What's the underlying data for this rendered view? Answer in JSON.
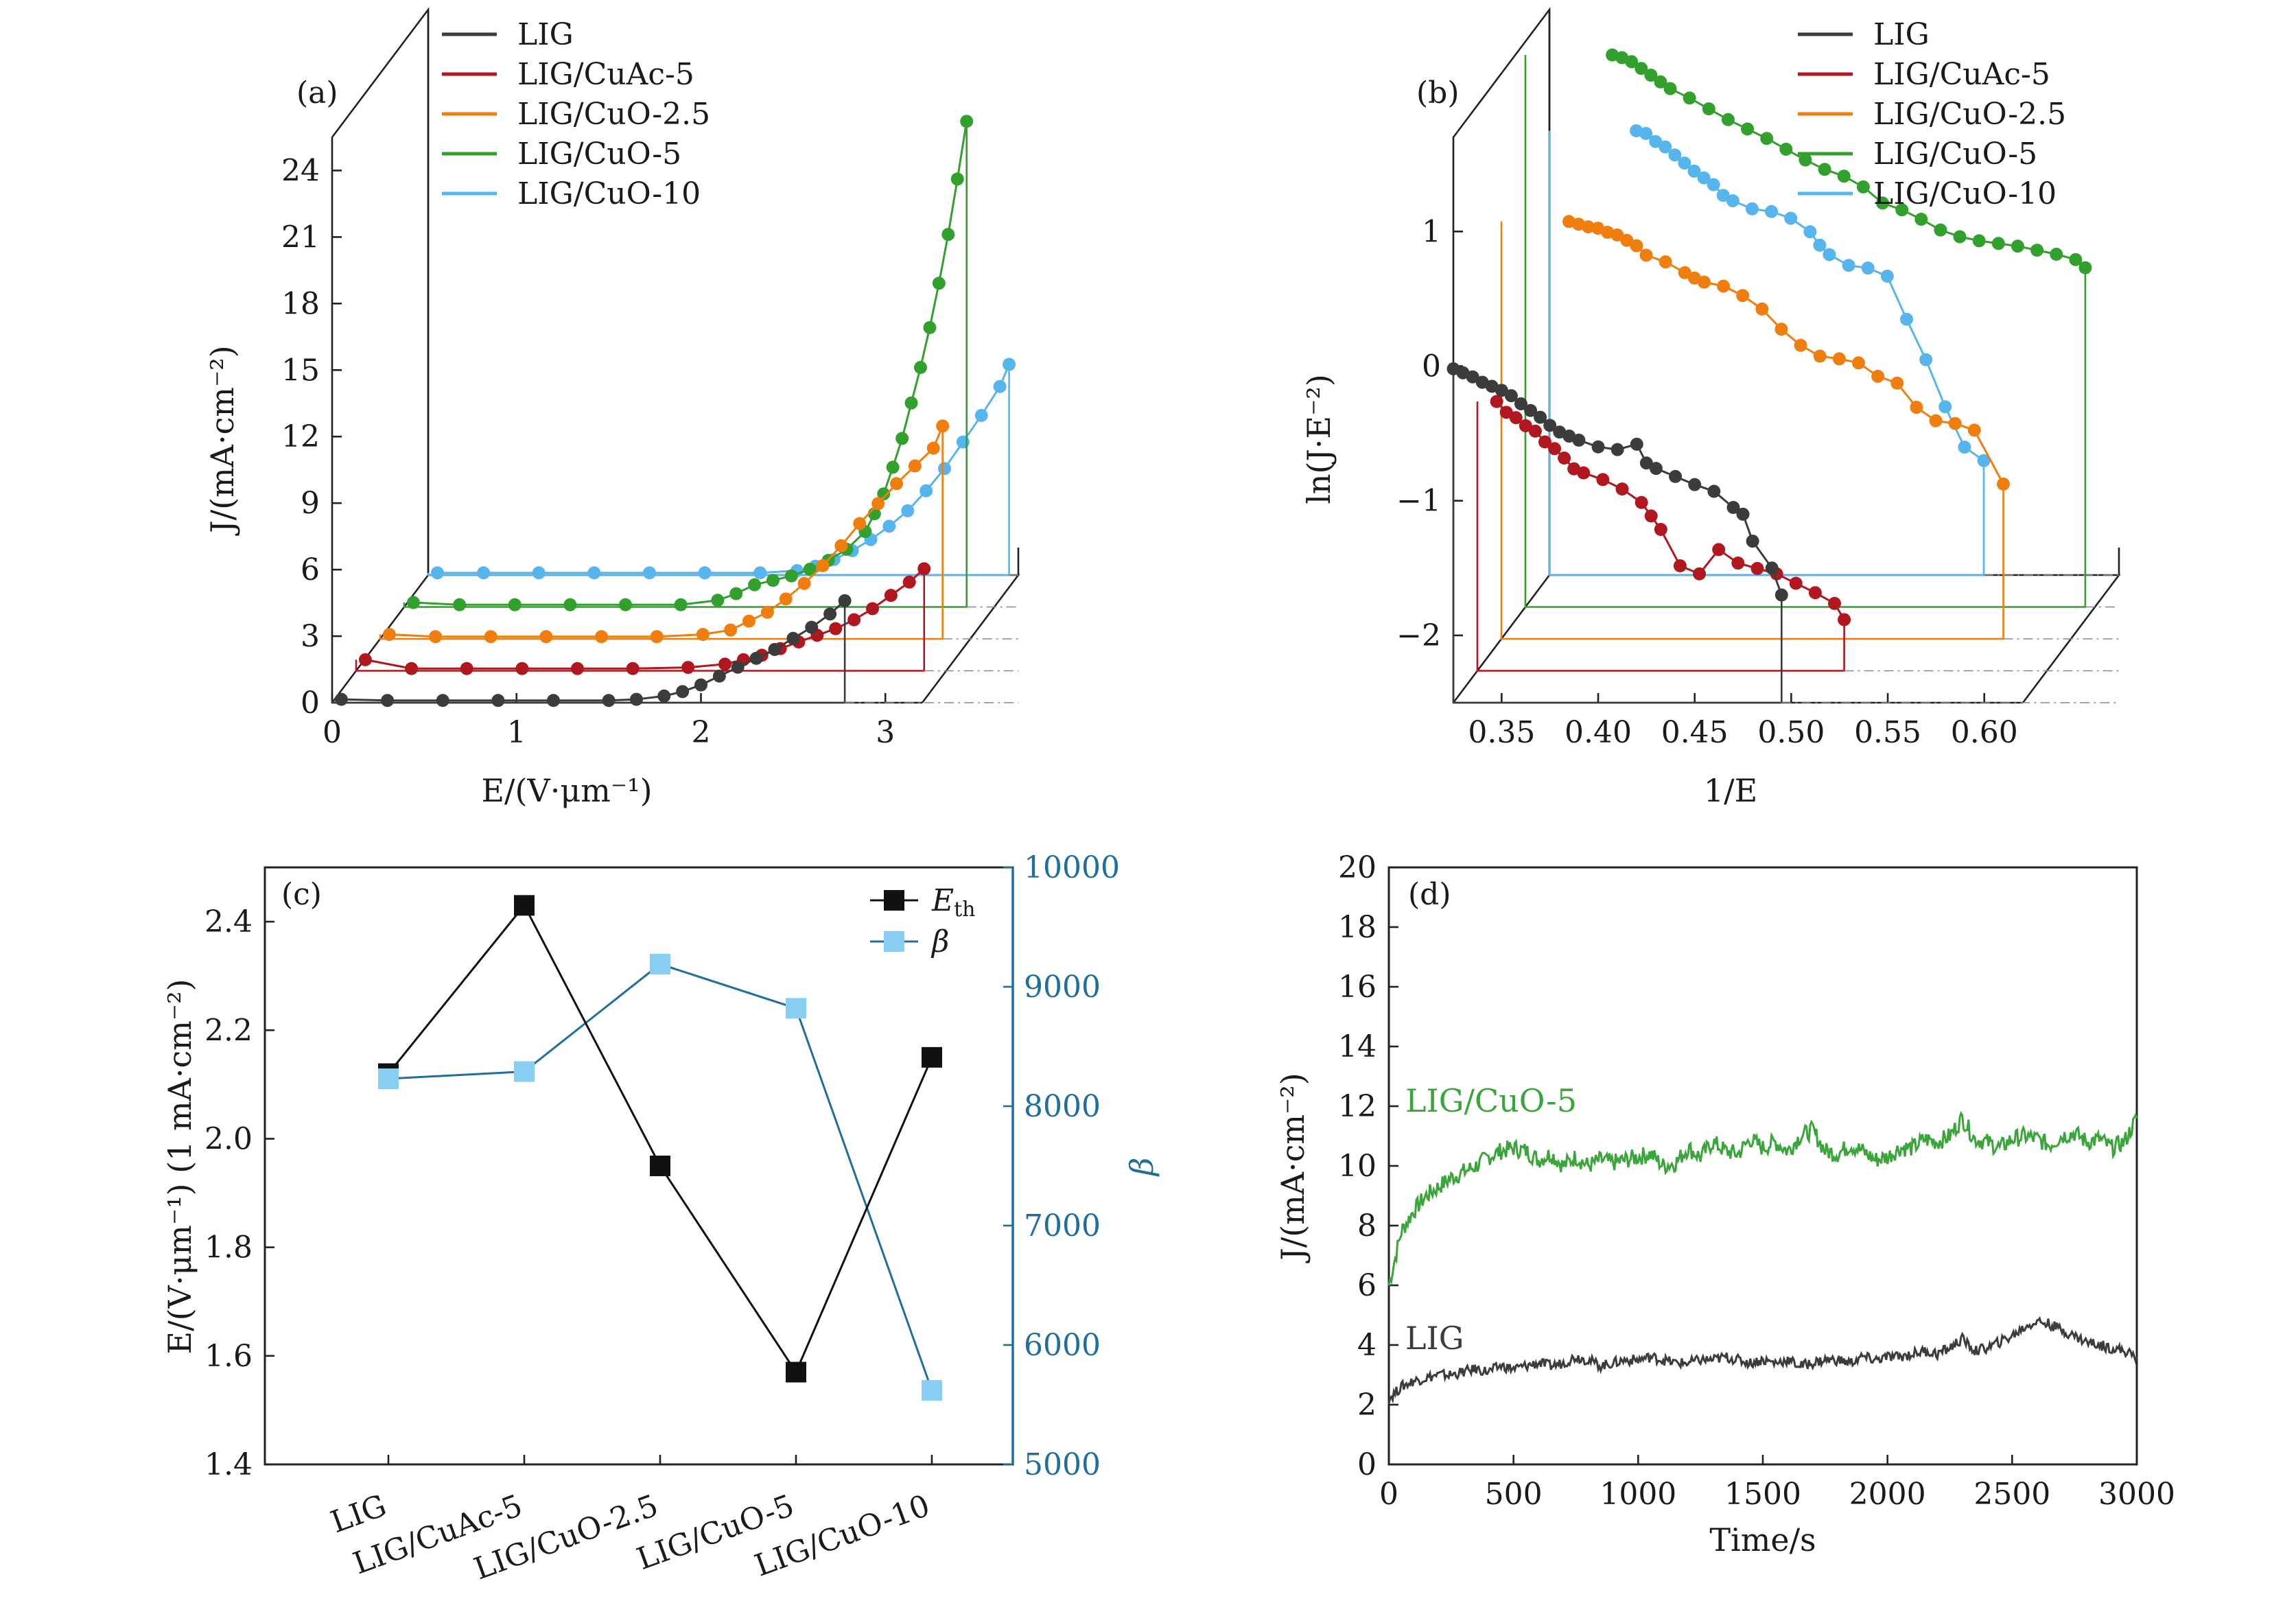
{
  "colors": {
    "LIG": "#3c3c3c",
    "LIG/CuAc-5": "#b0171f",
    "LIG/CuO-2.5": "#f07e0e",
    "LIG/CuO-5": "#32a02c",
    "LIG/CuO-10": "#56b5ec",
    "beta_line": "#1f6e9b",
    "beta_marker": "#87cdf4",
    "Eth": "#111111"
  },
  "chart_data": [
    {
      "panel": "(a)",
      "type": "line",
      "style": "3d-waterfall",
      "xlabel": "E/(V·μm⁻¹)",
      "ylabel": "J/(mA·cm⁻²)",
      "xticks": [
        "0",
        "1",
        "2",
        "3"
      ],
      "yticks": [
        "0",
        "3",
        "6",
        "9",
        "12",
        "15",
        "18",
        "21",
        "24"
      ],
      "xlim": [
        0,
        3.2
      ],
      "ylim": [
        0,
        25.5
      ],
      "legend": "top-left",
      "series": [
        {
          "name": "LIG",
          "x": [
            0.05,
            0.3,
            0.6,
            0.9,
            1.2,
            1.5,
            1.65,
            1.8,
            1.9,
            2.0,
            2.1,
            2.2,
            2.3,
            2.4,
            2.5,
            2.6,
            2.7,
            2.78
          ],
          "y": [
            0.15,
            0.1,
            0.1,
            0.1,
            0.1,
            0.1,
            0.15,
            0.3,
            0.5,
            0.8,
            1.2,
            1.6,
            2.0,
            2.4,
            2.9,
            3.4,
            4.0,
            4.6
          ]
        },
        {
          "name": "LIG/CuAc-5",
          "x": [
            0.05,
            0.3,
            0.6,
            0.9,
            1.2,
            1.5,
            1.8,
            2.0,
            2.1,
            2.2,
            2.3,
            2.4,
            2.5,
            2.6,
            2.7,
            2.8,
            2.9,
            3.0,
            3.08
          ],
          "y": [
            0.5,
            0.1,
            0.1,
            0.1,
            0.1,
            0.1,
            0.15,
            0.3,
            0.5,
            0.7,
            1.0,
            1.3,
            1.6,
            1.9,
            2.3,
            2.8,
            3.4,
            4.0,
            4.6
          ]
        },
        {
          "name": "LIG/CuO-2.5",
          "x": [
            0.05,
            0.3,
            0.6,
            0.9,
            1.2,
            1.5,
            1.75,
            1.9,
            2.0,
            2.1,
            2.2,
            2.3,
            2.4,
            2.5,
            2.6,
            2.7,
            2.8,
            2.9,
            3.0,
            3.05
          ],
          "y": [
            0.2,
            0.1,
            0.1,
            0.1,
            0.1,
            0.1,
            0.2,
            0.4,
            0.8,
            1.2,
            1.8,
            2.5,
            3.3,
            4.2,
            5.2,
            6.1,
            7.0,
            7.8,
            8.6,
            9.6
          ]
        },
        {
          "name": "LIG/CuO-5",
          "x": [
            0.05,
            0.3,
            0.6,
            0.9,
            1.2,
            1.5,
            1.7,
            1.8,
            1.9,
            2.0,
            2.1,
            2.2,
            2.3,
            2.4,
            2.5,
            2.55,
            2.6,
            2.65,
            2.7,
            2.75,
            2.8,
            2.85,
            2.9,
            2.95,
            3.0,
            3.05
          ],
          "y": [
            0.2,
            0.1,
            0.1,
            0.1,
            0.1,
            0.1,
            0.3,
            0.6,
            1.0,
            1.2,
            1.4,
            1.7,
            2.1,
            2.6,
            3.4,
            4.2,
            5.1,
            6.3,
            7.6,
            9.2,
            10.8,
            12.6,
            14.6,
            16.8,
            19.3,
            21.9
          ]
        },
        {
          "name": "LIG/CuO-10",
          "x": [
            0.05,
            0.3,
            0.6,
            0.9,
            1.2,
            1.5,
            1.8,
            2.0,
            2.1,
            2.2,
            2.3,
            2.4,
            2.5,
            2.6,
            2.7,
            2.8,
            2.9,
            3.0,
            3.1,
            3.15
          ],
          "y": [
            0.1,
            0.1,
            0.1,
            0.1,
            0.1,
            0.1,
            0.1,
            0.2,
            0.4,
            0.7,
            1.1,
            1.6,
            2.2,
            2.9,
            3.8,
            4.8,
            6.0,
            7.2,
            8.5,
            9.5
          ]
        }
      ]
    },
    {
      "panel": "(b)",
      "type": "line",
      "style": "3d-waterfall",
      "xlabel": "1/E",
      "ylabel": "ln(J·E⁻²)",
      "xticks": [
        "0.35",
        "0.40",
        "0.45",
        "0.50",
        "0.55",
        "0.60"
      ],
      "yticks": [
        "−2",
        "−1",
        "0",
        "1"
      ],
      "xlim": [
        0.325,
        0.62
      ],
      "ylim": [
        -2.5,
        1.7
      ],
      "legend": "top-right",
      "series": [
        {
          "name": "LIG",
          "x": [
            0.325,
            0.33,
            0.335,
            0.34,
            0.345,
            0.35,
            0.355,
            0.36,
            0.365,
            0.37,
            0.375,
            0.38,
            0.385,
            0.39,
            0.4,
            0.41,
            0.42,
            0.425,
            0.43,
            0.44,
            0.45,
            0.46,
            0.47,
            0.475,
            0.48,
            0.49,
            0.495
          ],
          "y": [
            -0.02,
            -0.05,
            -0.08,
            -0.12,
            -0.15,
            -0.18,
            -0.22,
            -0.28,
            -0.33,
            -0.38,
            -0.44,
            -0.49,
            -0.52,
            -0.55,
            -0.6,
            -0.62,
            -0.58,
            -0.72,
            -0.76,
            -0.82,
            -0.88,
            -0.93,
            -1.05,
            -1.1,
            -1.3,
            -1.5,
            -1.7
          ]
        },
        {
          "name": "LIG/CuAc-5",
          "x": [
            0.335,
            0.34,
            0.345,
            0.35,
            0.355,
            0.36,
            0.365,
            0.37,
            0.375,
            0.38,
            0.39,
            0.4,
            0.41,
            0.415,
            0.42,
            0.43,
            0.44,
            0.45,
            0.46,
            0.47,
            0.48,
            0.49,
            0.5,
            0.51,
            0.515
          ],
          "y": [
            -0.5,
            -0.58,
            -0.62,
            -0.68,
            -0.72,
            -0.8,
            -0.85,
            -0.92,
            -1.0,
            -1.03,
            -1.08,
            -1.15,
            -1.25,
            -1.35,
            -1.45,
            -1.72,
            -1.78,
            -1.6,
            -1.7,
            -1.74,
            -1.78,
            -1.85,
            -1.92,
            -2.0,
            -2.12
          ]
        },
        {
          "name": "LIG/CuO-2.5",
          "x": [
            0.36,
            0.365,
            0.37,
            0.375,
            0.38,
            0.385,
            0.39,
            0.395,
            0.4,
            0.41,
            0.42,
            0.425,
            0.43,
            0.44,
            0.45,
            0.46,
            0.47,
            0.48,
            0.49,
            0.5,
            0.51,
            0.52,
            0.53,
            0.54,
            0.55,
            0.56,
            0.57,
            0.585
          ],
          "y": [
            0.6,
            0.58,
            0.56,
            0.55,
            0.52,
            0.5,
            0.46,
            0.42,
            0.35,
            0.3,
            0.22,
            0.18,
            0.15,
            0.12,
            0.05,
            -0.05,
            -0.2,
            -0.32,
            -0.4,
            -0.42,
            -0.45,
            -0.55,
            -0.6,
            -0.78,
            -0.88,
            -0.9,
            -0.95,
            -1.35
          ]
        },
        {
          "name": "LIG/CuO-5",
          "x": [
            0.37,
            0.375,
            0.38,
            0.385,
            0.39,
            0.395,
            0.4,
            0.41,
            0.42,
            0.43,
            0.44,
            0.45,
            0.46,
            0.47,
            0.48,
            0.49,
            0.5,
            0.51,
            0.52,
            0.53,
            0.54,
            0.55,
            0.56,
            0.57,
            0.58,
            0.59,
            0.6,
            0.61,
            0.615
          ],
          "y": [
            1.6,
            1.58,
            1.55,
            1.5,
            1.45,
            1.4,
            1.35,
            1.28,
            1.2,
            1.12,
            1.05,
            0.98,
            0.9,
            0.82,
            0.75,
            0.7,
            0.62,
            0.5,
            0.45,
            0.38,
            0.3,
            0.25,
            0.22,
            0.2,
            0.18,
            0.15,
            0.12,
            0.08,
            0.02
          ]
        },
        {
          "name": "LIG/CuO-10",
          "x": [
            0.37,
            0.375,
            0.38,
            0.385,
            0.39,
            0.395,
            0.4,
            0.405,
            0.41,
            0.415,
            0.42,
            0.43,
            0.44,
            0.45,
            0.46,
            0.465,
            0.47,
            0.48,
            0.49,
            0.5,
            0.51,
            0.52,
            0.53,
            0.54,
            0.55
          ],
          "y": [
            0.8,
            0.78,
            0.72,
            0.68,
            0.62,
            0.56,
            0.5,
            0.45,
            0.4,
            0.32,
            0.28,
            0.22,
            0.2,
            0.15,
            0.05,
            -0.05,
            -0.12,
            -0.2,
            -0.22,
            -0.28,
            -0.6,
            -0.9,
            -1.25,
            -1.55,
            -1.65
          ]
        }
      ]
    },
    {
      "panel": "(c)",
      "type": "line",
      "categories": [
        "LIG",
        "LIG/CuAc-5",
        "LIG/CuO-2.5",
        "LIG/CuO-5",
        "LIG/CuO-10"
      ],
      "ylabel_left": "E/(V·μm⁻¹)   (1 mA·cm⁻²)",
      "ylabel_right": "β",
      "ylim_left": [
        1.4,
        2.5
      ],
      "ylim_right": [
        5000,
        10000
      ],
      "yticks_left": [
        "1.4",
        "1.6",
        "1.8",
        "2.0",
        "2.2",
        "2.4"
      ],
      "yticks_right": [
        "5000",
        "6000",
        "7000",
        "8000",
        "9000",
        "10000"
      ],
      "legend": "top-right",
      "series": [
        {
          "name": "E_th",
          "axis": "left",
          "values": [
            2.12,
            2.43,
            1.95,
            1.57,
            2.15
          ]
        },
        {
          "name": "β",
          "axis": "right",
          "values": [
            8230,
            8290,
            9190,
            8820,
            5620
          ]
        }
      ]
    },
    {
      "panel": "(d)",
      "type": "line",
      "xlabel": "Time/s",
      "ylabel": "J/(mA·cm⁻²)",
      "xlim": [
        0,
        3000
      ],
      "ylim": [
        0,
        20
      ],
      "xticks": [
        "0",
        "500",
        "1000",
        "1500",
        "2000",
        "2500",
        "3000"
      ],
      "yticks": [
        "0",
        "2",
        "4",
        "6",
        "8",
        "10",
        "12",
        "14",
        "16",
        "18",
        "20"
      ],
      "annotations": [
        "LIG/CuO-5",
        "LIG"
      ],
      "series": [
        {
          "name": "LIG/CuO-5",
          "x": [
            0,
            50,
            100,
            150,
            200,
            250,
            300,
            350,
            400,
            450,
            500,
            550,
            600,
            650,
            700,
            750,
            800,
            850,
            900,
            950,
            1000,
            1050,
            1100,
            1150,
            1200,
            1250,
            1300,
            1350,
            1400,
            1450,
            1500,
            1550,
            1600,
            1650,
            1700,
            1750,
            1800,
            1850,
            1900,
            1950,
            2000,
            2050,
            2100,
            2150,
            2200,
            2250,
            2300,
            2350,
            2400,
            2450,
            2500,
            2550,
            2600,
            2650,
            2700,
            2750,
            2800,
            2850,
            2900,
            2950,
            3000
          ],
          "y": [
            6.0,
            7.8,
            8.5,
            9.0,
            9.3,
            9.6,
            9.8,
            10.0,
            10.3,
            10.5,
            10.6,
            10.5,
            10.2,
            10.4,
            10.0,
            10.3,
            10.0,
            10.2,
            10.1,
            10.2,
            10.3,
            10.4,
            10.0,
            10.1,
            10.6,
            10.3,
            10.8,
            10.5,
            10.4,
            10.9,
            10.6,
            10.8,
            10.5,
            11.0,
            11.2,
            10.5,
            10.4,
            10.7,
            10.5,
            10.2,
            10.3,
            10.6,
            10.6,
            10.9,
            10.8,
            11.0,
            11.6,
            10.9,
            10.8,
            10.6,
            10.9,
            11.0,
            10.9,
            10.7,
            11.0,
            11.1,
            10.8,
            10.9,
            10.6,
            10.8,
            11.6
          ]
        },
        {
          "name": "LIG",
          "x": [
            0,
            50,
            100,
            150,
            200,
            250,
            300,
            350,
            400,
            450,
            500,
            550,
            600,
            650,
            700,
            750,
            800,
            850,
            900,
            950,
            1000,
            1050,
            1100,
            1150,
            1200,
            1250,
            1300,
            1350,
            1400,
            1450,
            1500,
            1550,
            1600,
            1650,
            1700,
            1750,
            1800,
            1850,
            1900,
            1950,
            2000,
            2050,
            2100,
            2150,
            2200,
            2250,
            2300,
            2350,
            2400,
            2450,
            2500,
            2550,
            2600,
            2650,
            2700,
            2750,
            2800,
            2850,
            2900,
            2950,
            3000
          ],
          "y": [
            2.2,
            2.6,
            2.8,
            2.9,
            3.0,
            3.0,
            3.1,
            3.2,
            3.1,
            3.3,
            3.2,
            3.3,
            3.4,
            3.3,
            3.4,
            3.6,
            3.5,
            3.3,
            3.4,
            3.5,
            3.5,
            3.6,
            3.5,
            3.4,
            3.4,
            3.5,
            3.5,
            3.6,
            3.5,
            3.4,
            3.5,
            3.4,
            3.5,
            3.3,
            3.4,
            3.5,
            3.5,
            3.4,
            3.6,
            3.5,
            3.6,
            3.6,
            3.7,
            3.8,
            3.7,
            3.9,
            4.2,
            3.8,
            3.9,
            4.1,
            4.3,
            4.6,
            4.8,
            4.7,
            4.5,
            4.3,
            4.1,
            4.0,
            3.9,
            3.8,
            3.6
          ]
        }
      ]
    }
  ]
}
